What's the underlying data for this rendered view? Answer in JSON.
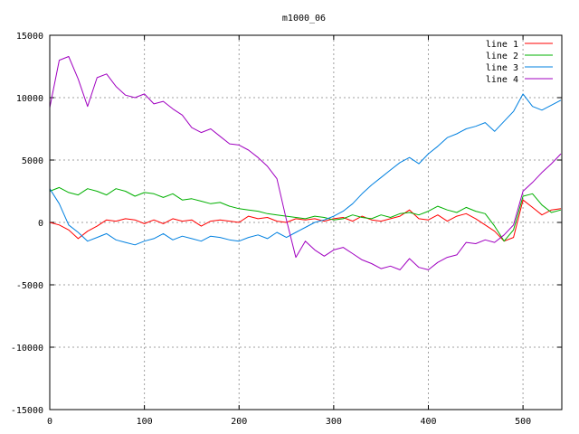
{
  "chart_data": {
    "type": "line",
    "title": "m1000_06",
    "xlabel": "",
    "ylabel": "",
    "xlim": [
      0,
      541
    ],
    "ylim": [
      -15000,
      15000
    ],
    "x_ticks": [
      0,
      100,
      200,
      300,
      400,
      500
    ],
    "y_ticks": [
      -15000,
      -10000,
      -5000,
      0,
      5000,
      10000,
      15000
    ],
    "grid": true,
    "legend_position": "top-right",
    "x": [
      0,
      10,
      20,
      30,
      40,
      50,
      60,
      70,
      80,
      90,
      100,
      110,
      120,
      130,
      140,
      150,
      160,
      170,
      180,
      190,
      200,
      210,
      220,
      230,
      240,
      250,
      260,
      270,
      280,
      290,
      300,
      310,
      320,
      330,
      340,
      350,
      360,
      370,
      380,
      390,
      400,
      410,
      420,
      430,
      440,
      450,
      460,
      470,
      480,
      490,
      500,
      510,
      520,
      530,
      540
    ],
    "series": [
      {
        "name": "line 1",
        "color": "#ff0000",
        "values": [
          0,
          -200,
          -600,
          -1300,
          -700,
          -300,
          200,
          100,
          300,
          200,
          -100,
          200,
          -100,
          300,
          100,
          200,
          -300,
          100,
          200,
          100,
          0,
          500,
          300,
          400,
          100,
          0,
          300,
          200,
          300,
          100,
          300,
          400,
          100,
          500,
          200,
          100,
          300,
          500,
          1000,
          300,
          200,
          600,
          100,
          500,
          700,
          300,
          -200,
          -700,
          -1500,
          -1200,
          1800,
          1200,
          600,
          1000,
          1100
        ]
      },
      {
        "name": "line 2",
        "color": "#00b000",
        "values": [
          2500,
          2800,
          2400,
          2200,
          2700,
          2500,
          2200,
          2700,
          2500,
          2100,
          2400,
          2300,
          2000,
          2300,
          1800,
          1900,
          1700,
          1500,
          1600,
          1300,
          1100,
          1000,
          900,
          700,
          600,
          500,
          400,
          300,
          500,
          400,
          200,
          300,
          600,
          400,
          300,
          600,
          400,
          700,
          800,
          600,
          900,
          1300,
          1000,
          800,
          1200,
          900,
          700,
          -300,
          -1500,
          -600,
          2100,
          2300,
          1400,
          800,
          1000
        ]
      },
      {
        "name": "line 3",
        "color": "#0080e0",
        "values": [
          2700,
          1500,
          -200,
          -800,
          -1500,
          -1200,
          -900,
          -1400,
          -1600,
          -1800,
          -1500,
          -1300,
          -900,
          -1400,
          -1100,
          -1300,
          -1500,
          -1100,
          -1200,
          -1400,
          -1500,
          -1200,
          -1000,
          -1300,
          -800,
          -1200,
          -800,
          -400,
          0,
          200,
          500,
          900,
          1500,
          2300,
          3000,
          3600,
          4200,
          4800,
          5200,
          4700,
          5500,
          6100,
          6800,
          7100,
          7500,
          7700,
          8000,
          7300,
          8100,
          8900,
          10300,
          9300,
          9000,
          9400,
          9800
        ]
      },
      {
        "name": "line 4",
        "color": "#a000c0",
        "values": [
          9200,
          13000,
          13300,
          11500,
          9300,
          11600,
          11900,
          10900,
          10200,
          10000,
          10300,
          9500,
          9700,
          9100,
          8600,
          7600,
          7200,
          7500,
          6900,
          6300,
          6200,
          5800,
          5200,
          4500,
          3500,
          200,
          -2800,
          -1500,
          -2200,
          -2700,
          -2200,
          -2000,
          -2500,
          -3000,
          -3300,
          -3700,
          -3500,
          -3800,
          -2900,
          -3600,
          -3800,
          -3200,
          -2800,
          -2600,
          -1600,
          -1700,
          -1400,
          -1600,
          -1000,
          -200,
          2500,
          3200,
          4000,
          4700,
          5500
        ]
      }
    ]
  }
}
